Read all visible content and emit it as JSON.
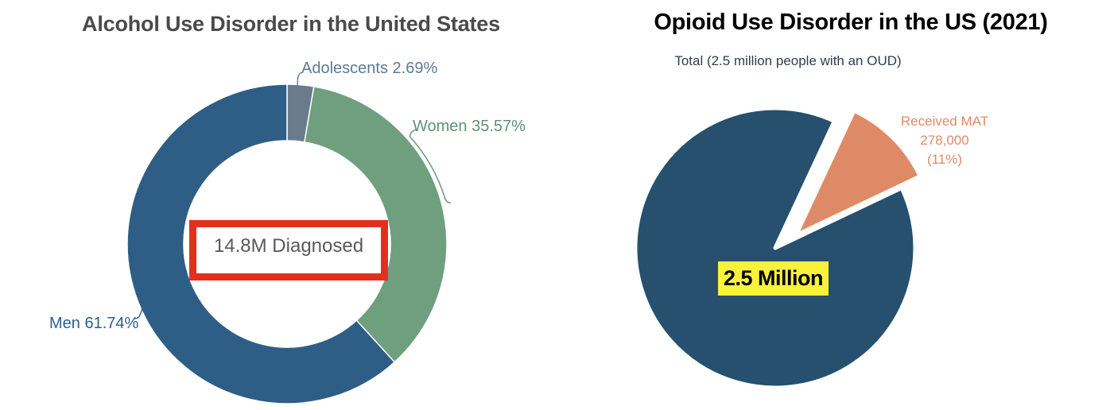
{
  "left_chart": {
    "title": "Alcohol Use Disorder in the United States",
    "center_label": "14.8M Diagnosed",
    "slice_labels": {
      "adolescents": "Adolescents 2.69%",
      "women": "Women 35.57%",
      "men": "Men 61.74%"
    },
    "colors": {
      "men": "#2E5E86",
      "women": "#6F9F7E",
      "adolescents": "#6A7B8B",
      "callout_border": "#E2301E",
      "center_text": "#595959"
    }
  },
  "right_chart": {
    "title": "Opioid Use Disorder in the US (2021)",
    "subtitle": "Total (2.5 million people with an OUD)",
    "total_label": "2.5 Million",
    "mat_label": {
      "line1": "Received MAT",
      "line2": "278,000",
      "line3": "(11%)"
    },
    "colors": {
      "pie": "#26506E",
      "mat": "#DF8A66",
      "highlight": "#F8F23B"
    }
  },
  "chart_data": [
    {
      "type": "pie",
      "subtype": "donut",
      "title": "Alcohol Use Disorder in the United States",
      "center_label": "14.8M Diagnosed",
      "direction": "clockwise",
      "start_angle_deg": 0,
      "legend_position": "outside-callouts",
      "slices": [
        {
          "name": "Adolescents",
          "value": 2.69,
          "color": "#6A7B8B",
          "callout": "Adolescents 2.69%"
        },
        {
          "name": "Women",
          "value": 35.57,
          "color": "#6F9F7E",
          "callout": "Women 35.57%"
        },
        {
          "name": "Men",
          "value": 61.74,
          "color": "#2E5E86",
          "callout": "Men 61.74%"
        }
      ]
    },
    {
      "type": "pie",
      "title": "Opioid Use Disorder in the US (2021)",
      "subtitle": "Total (2.5 million people with an OUD)",
      "direction": "clockwise",
      "start_angle_deg": 64.6,
      "slices": [
        {
          "name": "People with an OUD",
          "value": 89,
          "color": "#26506E",
          "label": "2.5 Million",
          "exploded": false
        },
        {
          "name": "Received MAT",
          "value": 11,
          "color": "#DF8A66",
          "label": "Received MAT 278,000 (11%)",
          "exploded": true
        }
      ]
    }
  ]
}
